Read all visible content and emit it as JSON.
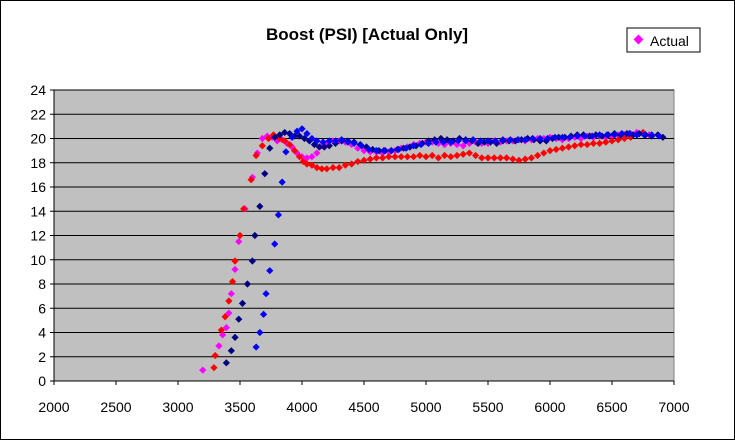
{
  "chart_data": {
    "type": "scatter",
    "title": "Boost (PSI) [Actual Only]",
    "xlabel": "",
    "ylabel": "",
    "xlim": [
      2000,
      7000
    ],
    "ylim": [
      0,
      24
    ],
    "x_ticks": [
      2000,
      2500,
      3000,
      3500,
      4000,
      4500,
      5000,
      5500,
      6000,
      6500,
      7000
    ],
    "y_ticks": [
      0,
      2,
      4,
      6,
      8,
      10,
      12,
      14,
      16,
      18,
      20,
      22,
      24
    ],
    "grid": "horizontal",
    "plot_background": "#c0c0c0",
    "legend": {
      "placement": "top-right",
      "entries": [
        "Actual"
      ]
    },
    "series": [
      {
        "name": "Actual",
        "color": "#ff00ff",
        "points": [
          [
            3200,
            0.9
          ],
          [
            3330,
            2.9
          ],
          [
            3360,
            3.8
          ],
          [
            3390,
            4.4
          ],
          [
            3410,
            5.6
          ],
          [
            3430,
            7.2
          ],
          [
            3460,
            9.2
          ],
          [
            3490,
            11.5
          ],
          [
            3540,
            14.2
          ],
          [
            3600,
            16.8
          ],
          [
            3640,
            18.8
          ],
          [
            3680,
            20.0
          ],
          [
            3720,
            20.2
          ],
          [
            3760,
            20.1
          ],
          [
            3800,
            19.8
          ],
          [
            3840,
            19.9
          ],
          [
            3880,
            19.6
          ],
          [
            3920,
            19.3
          ],
          [
            3960,
            18.8
          ],
          [
            4000,
            18.5
          ],
          [
            4040,
            18.4
          ],
          [
            4080,
            18.5
          ],
          [
            4120,
            18.8
          ],
          [
            4160,
            19.4
          ],
          [
            4200,
            19.6
          ],
          [
            4250,
            19.8
          ],
          [
            4300,
            19.8
          ],
          [
            4350,
            19.7
          ],
          [
            4400,
            19.5
          ],
          [
            4450,
            19.2
          ],
          [
            4500,
            19.0
          ],
          [
            4550,
            18.9
          ],
          [
            4600,
            18.9
          ],
          [
            4650,
            18.8
          ],
          [
            4700,
            18.9
          ],
          [
            4750,
            19.0
          ],
          [
            4800,
            19.2
          ],
          [
            4850,
            19.3
          ],
          [
            4900,
            19.5
          ],
          [
            4950,
            19.6
          ],
          [
            5000,
            19.7
          ],
          [
            5050,
            19.7
          ],
          [
            5100,
            19.6
          ],
          [
            5150,
            19.5
          ],
          [
            5200,
            19.6
          ],
          [
            5250,
            19.5
          ],
          [
            5300,
            19.4
          ],
          [
            5350,
            19.6
          ],
          [
            5400,
            19.7
          ],
          [
            5450,
            19.6
          ],
          [
            5500,
            19.6
          ],
          [
            5550,
            19.8
          ],
          [
            5600,
            19.7
          ],
          [
            5650,
            19.8
          ],
          [
            5700,
            19.8
          ],
          [
            5750,
            19.9
          ],
          [
            5800,
            19.8
          ],
          [
            5850,
            19.9
          ],
          [
            5900,
            20.0
          ],
          [
            5950,
            20.0
          ],
          [
            6000,
            20.1
          ],
          [
            6050,
            20.0
          ],
          [
            6100,
            19.9
          ],
          [
            6150,
            20.0
          ],
          [
            6200,
            20.1
          ],
          [
            6250,
            20.0
          ],
          [
            6300,
            20.2
          ],
          [
            6350,
            20.1
          ],
          [
            6400,
            20.2
          ],
          [
            6450,
            20.1
          ],
          [
            6500,
            20.2
          ],
          [
            6550,
            20.3
          ],
          [
            6600,
            20.3
          ],
          [
            6650,
            20.4
          ],
          [
            6700,
            20.5
          ],
          [
            6750,
            20.4
          ],
          [
            6800,
            20.3
          ]
        ]
      },
      {
        "name": "",
        "color": "#ff0000",
        "points": [
          [
            3290,
            1.1
          ],
          [
            3300,
            2.1
          ],
          [
            3350,
            4.2
          ],
          [
            3380,
            5.3
          ],
          [
            3410,
            6.6
          ],
          [
            3440,
            8.2
          ],
          [
            3460,
            9.9
          ],
          [
            3500,
            12.0
          ],
          [
            3530,
            14.2
          ],
          [
            3590,
            16.6
          ],
          [
            3630,
            18.6
          ],
          [
            3680,
            19.4
          ],
          [
            3730,
            20.0
          ],
          [
            3770,
            20.3
          ],
          [
            3820,
            20.0
          ],
          [
            3860,
            19.8
          ],
          [
            3900,
            19.5
          ],
          [
            3940,
            19.0
          ],
          [
            3980,
            18.5
          ],
          [
            4010,
            18.1
          ],
          [
            4040,
            17.9
          ],
          [
            4080,
            17.8
          ],
          [
            4120,
            17.6
          ],
          [
            4160,
            17.5
          ],
          [
            4200,
            17.5
          ],
          [
            4250,
            17.6
          ],
          [
            4300,
            17.6
          ],
          [
            4350,
            17.8
          ],
          [
            4400,
            17.9
          ],
          [
            4450,
            18.1
          ],
          [
            4500,
            18.2
          ],
          [
            4550,
            18.3
          ],
          [
            4600,
            18.4
          ],
          [
            4650,
            18.4
          ],
          [
            4700,
            18.5
          ],
          [
            4750,
            18.5
          ],
          [
            4800,
            18.5
          ],
          [
            4850,
            18.5
          ],
          [
            4900,
            18.5
          ],
          [
            4950,
            18.6
          ],
          [
            5000,
            18.5
          ],
          [
            5050,
            18.6
          ],
          [
            5100,
            18.4
          ],
          [
            5150,
            18.6
          ],
          [
            5200,
            18.5
          ],
          [
            5250,
            18.6
          ],
          [
            5300,
            18.7
          ],
          [
            5350,
            18.8
          ],
          [
            5400,
            18.6
          ],
          [
            5450,
            18.4
          ],
          [
            5500,
            18.4
          ],
          [
            5550,
            18.4
          ],
          [
            5600,
            18.4
          ],
          [
            5650,
            18.4
          ],
          [
            5700,
            18.3
          ],
          [
            5750,
            18.2
          ],
          [
            5800,
            18.3
          ],
          [
            5850,
            18.4
          ],
          [
            5900,
            18.6
          ],
          [
            5950,
            18.8
          ],
          [
            6000,
            19.0
          ],
          [
            6050,
            19.1
          ],
          [
            6100,
            19.2
          ],
          [
            6150,
            19.3
          ],
          [
            6200,
            19.4
          ],
          [
            6250,
            19.5
          ],
          [
            6300,
            19.5
          ],
          [
            6350,
            19.6
          ],
          [
            6400,
            19.6
          ],
          [
            6450,
            19.7
          ],
          [
            6500,
            19.8
          ],
          [
            6550,
            19.9
          ],
          [
            6600,
            20.0
          ],
          [
            6650,
            20.1
          ],
          [
            6700,
            20.3
          ],
          [
            6750,
            20.5
          ]
        ]
      },
      {
        "name": "",
        "color": "#000080",
        "points": [
          [
            3390,
            1.5
          ],
          [
            3430,
            2.5
          ],
          [
            3460,
            3.6
          ],
          [
            3490,
            5.1
          ],
          [
            3520,
            6.4
          ],
          [
            3560,
            8.0
          ],
          [
            3600,
            9.9
          ],
          [
            3620,
            12.0
          ],
          [
            3660,
            14.4
          ],
          [
            3700,
            17.1
          ],
          [
            3740,
            19.2
          ],
          [
            3780,
            20.1
          ],
          [
            3820,
            20.3
          ],
          [
            3860,
            20.5
          ],
          [
            3900,
            20.4
          ],
          [
            3940,
            20.2
          ],
          [
            3980,
            20.2
          ],
          [
            4020,
            20.0
          ],
          [
            4060,
            19.8
          ],
          [
            4100,
            19.5
          ],
          [
            4140,
            19.3
          ],
          [
            4180,
            19.3
          ],
          [
            4220,
            19.4
          ],
          [
            4270,
            19.6
          ],
          [
            4320,
            19.8
          ],
          [
            4370,
            19.8
          ],
          [
            4420,
            19.7
          ],
          [
            4470,
            19.5
          ],
          [
            4520,
            19.3
          ],
          [
            4570,
            19.1
          ],
          [
            4620,
            19.0
          ],
          [
            4670,
            19.0
          ],
          [
            4720,
            19.0
          ],
          [
            4770,
            19.1
          ],
          [
            4820,
            19.2
          ],
          [
            4870,
            19.3
          ],
          [
            4920,
            19.4
          ],
          [
            4970,
            19.6
          ],
          [
            5020,
            19.8
          ],
          [
            5070,
            19.9
          ],
          [
            5120,
            20.0
          ],
          [
            5170,
            19.9
          ],
          [
            5220,
            19.8
          ],
          [
            5270,
            20.0
          ],
          [
            5320,
            19.9
          ],
          [
            5370,
            19.8
          ],
          [
            5420,
            19.6
          ],
          [
            5470,
            19.7
          ],
          [
            5520,
            19.7
          ],
          [
            5570,
            19.6
          ],
          [
            5620,
            19.8
          ],
          [
            5670,
            19.8
          ],
          [
            5720,
            19.8
          ],
          [
            5770,
            19.9
          ],
          [
            5820,
            20.0
          ],
          [
            5870,
            19.9
          ],
          [
            5920,
            19.8
          ],
          [
            5970,
            19.8
          ],
          [
            6020,
            20.0
          ],
          [
            6070,
            20.1
          ],
          [
            6120,
            20.1
          ],
          [
            6170,
            20.2
          ],
          [
            6220,
            20.3
          ],
          [
            6270,
            20.3
          ],
          [
            6320,
            20.2
          ],
          [
            6370,
            20.3
          ],
          [
            6420,
            20.2
          ],
          [
            6470,
            20.3
          ],
          [
            6520,
            20.4
          ],
          [
            6570,
            20.3
          ],
          [
            6620,
            20.4
          ],
          [
            6670,
            20.3
          ],
          [
            6720,
            20.4
          ],
          [
            6770,
            20.3
          ],
          [
            6820,
            20.2
          ],
          [
            6870,
            20.3
          ],
          [
            6910,
            20.1
          ]
        ]
      },
      {
        "name": "",
        "color": "#0000ff",
        "points": [
          [
            3630,
            2.8
          ],
          [
            3660,
            4.0
          ],
          [
            3690,
            5.5
          ],
          [
            3710,
            7.2
          ],
          [
            3740,
            9.1
          ],
          [
            3780,
            11.3
          ],
          [
            3810,
            13.7
          ],
          [
            3840,
            16.4
          ],
          [
            3870,
            18.9
          ],
          [
            3920,
            20.1
          ],
          [
            3960,
            20.6
          ],
          [
            4000,
            20.8
          ],
          [
            4040,
            20.4
          ],
          [
            4080,
            20.0
          ],
          [
            4120,
            19.8
          ],
          [
            4170,
            19.7
          ],
          [
            4220,
            19.8
          ],
          [
            4270,
            19.8
          ],
          [
            4320,
            19.9
          ],
          [
            4370,
            19.7
          ],
          [
            4420,
            19.6
          ],
          [
            4480,
            19.4
          ],
          [
            4540,
            19.1
          ],
          [
            4600,
            19.0
          ],
          [
            4660,
            19.0
          ],
          [
            4720,
            19.0
          ],
          [
            4780,
            19.1
          ],
          [
            4840,
            19.2
          ],
          [
            4900,
            19.4
          ],
          [
            4960,
            19.5
          ],
          [
            5020,
            19.6
          ],
          [
            5080,
            19.7
          ],
          [
            5140,
            19.7
          ],
          [
            5200,
            19.7
          ],
          [
            5260,
            19.8
          ],
          [
            5320,
            19.8
          ],
          [
            5380,
            19.9
          ],
          [
            5440,
            19.8
          ],
          [
            5500,
            19.8
          ],
          [
            5560,
            19.8
          ],
          [
            5620,
            19.9
          ],
          [
            5680,
            19.9
          ],
          [
            5740,
            19.9
          ],
          [
            5800,
            19.9
          ],
          [
            5860,
            20.0
          ],
          [
            5920,
            20.0
          ],
          [
            5980,
            20.0
          ],
          [
            6040,
            20.1
          ],
          [
            6100,
            20.1
          ],
          [
            6160,
            20.1
          ],
          [
            6220,
            20.2
          ],
          [
            6280,
            20.2
          ],
          [
            6340,
            20.2
          ],
          [
            6400,
            20.3
          ],
          [
            6460,
            20.3
          ],
          [
            6520,
            20.3
          ],
          [
            6580,
            20.4
          ],
          [
            6640,
            20.4
          ],
          [
            6700,
            20.3
          ],
          [
            6760,
            20.3
          ],
          [
            6820,
            20.3
          ],
          [
            6880,
            20.2
          ]
        ]
      }
    ]
  }
}
